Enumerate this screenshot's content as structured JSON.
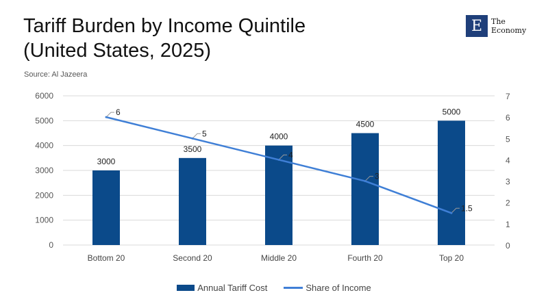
{
  "header": {
    "title_line1": "Tariff Burden by Income Quintile",
    "title_line2": "(United States, 2025)",
    "source": "Source: Al Jazeera"
  },
  "logo": {
    "mark": "E",
    "line1": "The",
    "line2": "Economy"
  },
  "colors": {
    "bar": "#0b4a8a",
    "line": "#3f7fd6",
    "grid": "#d9d9d9"
  },
  "chart_data": {
    "type": "bar",
    "title": "Tariff Burden by Income Quintile (United States, 2025)",
    "categories": [
      "Bottom 20",
      "Second 20",
      "Middle 20",
      "Fourth 20",
      "Top 20"
    ],
    "series": [
      {
        "name": "Annual Tariff Cost",
        "type": "bar",
        "axis": "left",
        "values": [
          3000,
          3500,
          4000,
          4500,
          5000
        ]
      },
      {
        "name": "Share of Income",
        "type": "line",
        "axis": "right",
        "values": [
          6,
          5,
          4,
          3,
          1.5
        ]
      }
    ],
    "ylim_left": [
      0,
      6000
    ],
    "yticks_left": [
      0,
      1000,
      2000,
      3000,
      4000,
      5000,
      6000
    ],
    "ylim_right": [
      0,
      7
    ],
    "yticks_right": [
      0,
      1,
      2,
      3,
      4,
      5,
      6,
      7
    ],
    "grid": true,
    "legend_position": "bottom"
  }
}
